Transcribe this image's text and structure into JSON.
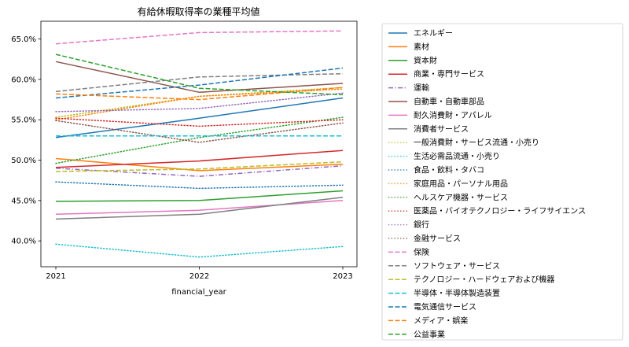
{
  "chart_data": {
    "type": "line",
    "title": "有給休暇取得率の業種平均値",
    "xlabel": "financial_year",
    "ylabel": "",
    "categories": [
      "2021",
      "2022",
      "2023"
    ],
    "ylim": [
      36.8,
      67.2
    ],
    "yticks": [
      40.0,
      45.0,
      50.0,
      55.0,
      60.0,
      65.0
    ],
    "ytick_labels": [
      "40.0%",
      "45.0%",
      "50.0%",
      "55.0%",
      "60.0%",
      "65.0%"
    ],
    "legend_position": "outside-right",
    "grid": false,
    "series": [
      {
        "name": "エネルギー",
        "values": [
          52.8,
          55.2,
          57.7
        ],
        "color": "#1f77b4",
        "dash": "solid"
      },
      {
        "name": "素材",
        "values": [
          50.2,
          48.7,
          49.5
        ],
        "color": "#ff7f0e",
        "dash": "solid"
      },
      {
        "name": "資本財",
        "values": [
          44.9,
          45.0,
          46.2
        ],
        "color": "#2ca02c",
        "dash": "solid"
      },
      {
        "name": "商業・専門サービス",
        "values": [
          49.1,
          49.9,
          51.2
        ],
        "color": "#d62728",
        "dash": "solid"
      },
      {
        "name": "運輸",
        "values": [
          49.0,
          48.0,
          49.3
        ],
        "color": "#9467bd",
        "dash": "dashdot"
      },
      {
        "name": "自動車・自動車部品",
        "values": [
          62.2,
          58.4,
          59.5
        ],
        "color": "#8c564b",
        "dash": "solid"
      },
      {
        "name": "耐久消費財・アパレル",
        "values": [
          43.3,
          43.8,
          45.0
        ],
        "color": "#e377c2",
        "dash": "solid"
      },
      {
        "name": "消費者サービス",
        "values": [
          42.7,
          43.3,
          45.4
        ],
        "color": "#7f7f7f",
        "dash": "solid"
      },
      {
        "name": "一般消費財・サービス流通・小売り",
        "values": [
          55.3,
          57.9,
          59.0
        ],
        "color": "#bcbd22",
        "dash": "dotted"
      },
      {
        "name": "生活必需品流通・小売り",
        "values": [
          39.6,
          38.0,
          39.3
        ],
        "color": "#17becf",
        "dash": "dotted"
      },
      {
        "name": "食品・飲料・タバコ",
        "values": [
          47.3,
          46.5,
          46.9
        ],
        "color": "#1f77b4",
        "dash": "dotted"
      },
      {
        "name": "家庭用品・パーソナル用品",
        "values": [
          55.0,
          57.9,
          58.8
        ],
        "color": "#ff7f0e",
        "dash": "dotted"
      },
      {
        "name": "ヘルスケア機器・サービス",
        "values": [
          49.6,
          52.8,
          55.3
        ],
        "color": "#2ca02c",
        "dash": "dotted"
      },
      {
        "name": "医薬品・バイオテクノロジー・ライフサイエンス",
        "values": [
          55.2,
          54.2,
          55.0
        ],
        "color": "#d62728",
        "dash": "dotted"
      },
      {
        "name": "銀行",
        "values": [
          56.0,
          56.4,
          58.3
        ],
        "color": "#9467bd",
        "dash": "dotted"
      },
      {
        "name": "金融サービス",
        "values": [
          54.9,
          52.2,
          54.6
        ],
        "color": "#8c564b",
        "dash": "dotted"
      },
      {
        "name": "保険",
        "values": [
          64.4,
          65.8,
          66.0
        ],
        "color": "#e377c2",
        "dash": "dashed"
      },
      {
        "name": "ソフトウェア・サービス",
        "values": [
          58.5,
          60.3,
          60.7
        ],
        "color": "#7f7f7f",
        "dash": "dashed"
      },
      {
        "name": "テクノロジー・ハードウェアおよび機器",
        "values": [
          48.6,
          48.9,
          49.8
        ],
        "color": "#bcbd22",
        "dash": "dashed"
      },
      {
        "name": "半導体・半導体製造装置",
        "values": [
          53.0,
          53.0,
          53.0
        ],
        "color": "#17becf",
        "dash": "dashed"
      },
      {
        "name": "電気通信サービス",
        "values": [
          57.7,
          59.3,
          61.4
        ],
        "color": "#1f77b4",
        "dash": "dashed"
      },
      {
        "name": "メディア・娯楽",
        "values": [
          58.2,
          57.5,
          59.0
        ],
        "color": "#ff7f0e",
        "dash": "dashed"
      },
      {
        "name": "公益事業",
        "values": [
          63.1,
          58.9,
          58.1
        ],
        "color": "#2ca02c",
        "dash": "dashed"
      }
    ]
  }
}
